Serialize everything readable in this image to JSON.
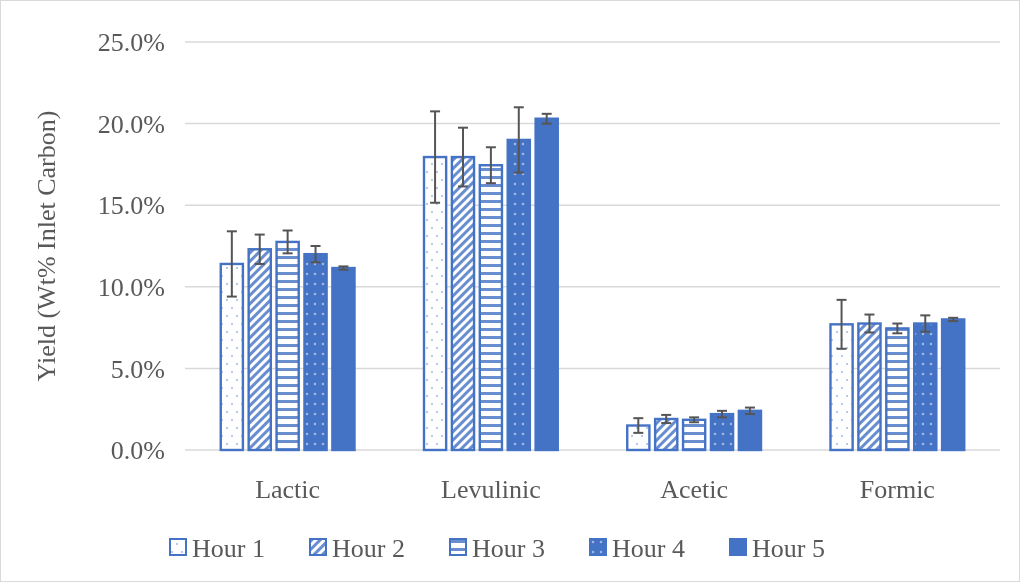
{
  "chart_data": {
    "type": "bar",
    "ylabel": "Yield (Wt% Inlet Carbon)",
    "categories": [
      "Lactic",
      "Levulinic",
      "Acetic",
      "Formic"
    ],
    "series": [
      {
        "name": "Hour 1",
        "color": "#4472c4",
        "values": [
          11.4,
          17.95,
          1.5,
          7.7
        ],
        "errors": [
          2.0,
          2.8,
          0.45,
          1.5
        ]
      },
      {
        "name": "Hour 2",
        "color": "#4472c4",
        "values": [
          12.3,
          17.95,
          1.9,
          7.75
        ],
        "errors": [
          0.9,
          1.8,
          0.25,
          0.55
        ]
      },
      {
        "name": "Hour 3",
        "color": "#4472c4",
        "values": [
          12.75,
          17.45,
          1.85,
          7.45
        ],
        "errors": [
          0.7,
          1.1,
          0.15,
          0.3
        ]
      },
      {
        "name": "Hour 4",
        "color": "#4472c4",
        "values": [
          12.0,
          19.0,
          2.2,
          7.75
        ],
        "errors": [
          0.5,
          2.0,
          0.2,
          0.5
        ]
      },
      {
        "name": "Hour 5",
        "color": "#4472c4",
        "values": [
          11.15,
          20.3,
          2.4,
          8.0
        ],
        "errors": [
          0.1,
          0.3,
          0.2,
          0.1
        ]
      }
    ],
    "ylim": [
      0,
      25
    ],
    "yticks": [
      {
        "value": 0,
        "label": "0.0%"
      },
      {
        "value": 5,
        "label": "5.0%"
      },
      {
        "value": 10,
        "label": "10.0%"
      },
      {
        "value": 15,
        "label": "15.0%"
      },
      {
        "value": 20,
        "label": "20.0%"
      },
      {
        "value": 25,
        "label": "25.0%"
      }
    ],
    "grid": "y",
    "legend": "bottom"
  }
}
